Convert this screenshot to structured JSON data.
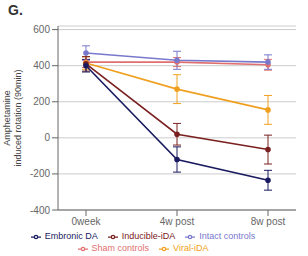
{
  "chart_data": {
    "type": "line",
    "title": "G.",
    "ylabel": "Amphetamine\ninduced rotation (90min)",
    "categories": [
      "0week",
      "4w post",
      "8w post"
    ],
    "series": [
      {
        "name": "Sham controls",
        "color": "#e07070",
        "values": [
          420,
          420,
          405
        ],
        "errors": [
          30,
          25,
          30
        ]
      },
      {
        "name": "Intact controls",
        "color": "#7878cc",
        "values": [
          470,
          430,
          420
        ],
        "errors": [
          40,
          50,
          40
        ]
      },
      {
        "name": "Viral-iDA",
        "color": "#f0a020",
        "values": [
          415,
          270,
          155
        ],
        "errors": [
          35,
          80,
          80
        ]
      },
      {
        "name": "Inducible-iDA",
        "color": "#7a2020",
        "values": [
          410,
          20,
          -65
        ],
        "errors": [
          40,
          60,
          80
        ]
      },
      {
        "name": "Embronic DA",
        "color": "#1a1a60",
        "values": [
          400,
          -120,
          -235
        ],
        "errors": [
          35,
          70,
          55
        ]
      }
    ],
    "ylim": [
      -400,
      620
    ],
    "yticks": [
      -400,
      -200,
      0,
      200,
      400,
      600
    ],
    "grid": true,
    "marker": "circle",
    "line_style": "solid"
  }
}
